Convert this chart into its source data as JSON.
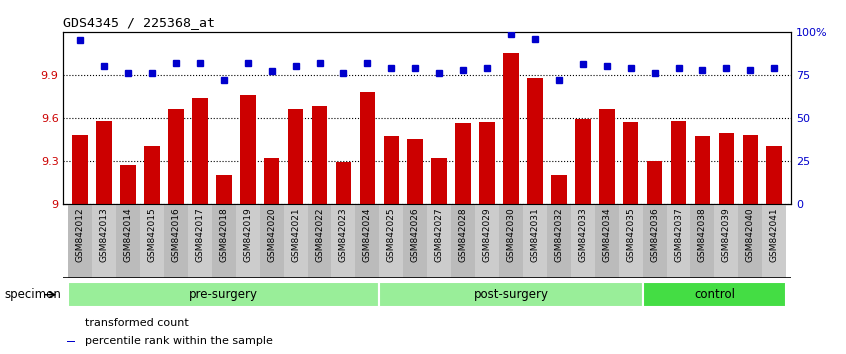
{
  "title": "GDS4345 / 225368_at",
  "samples": [
    "GSM842012",
    "GSM842013",
    "GSM842014",
    "GSM842015",
    "GSM842016",
    "GSM842017",
    "GSM842018",
    "GSM842019",
    "GSM842020",
    "GSM842021",
    "GSM842022",
    "GSM842023",
    "GSM842024",
    "GSM842025",
    "GSM842026",
    "GSM842027",
    "GSM842028",
    "GSM842029",
    "GSM842030",
    "GSM842031",
    "GSM842032",
    "GSM842033",
    "GSM842034",
    "GSM842035",
    "GSM842036",
    "GSM842037",
    "GSM842038",
    "GSM842039",
    "GSM842040",
    "GSM842041"
  ],
  "bar_values": [
    9.48,
    9.58,
    9.27,
    9.4,
    9.66,
    9.74,
    9.2,
    9.76,
    9.32,
    9.66,
    9.68,
    9.29,
    9.78,
    9.47,
    9.45,
    9.32,
    9.56,
    9.57,
    10.05,
    9.88,
    9.2,
    9.59,
    9.66,
    9.57,
    9.3,
    9.58,
    9.47,
    9.49,
    9.48,
    9.4
  ],
  "percentile_values": [
    95,
    80,
    76,
    76,
    82,
    82,
    72,
    82,
    77,
    80,
    82,
    76,
    82,
    79,
    79,
    76,
    78,
    79,
    99,
    96,
    72,
    81,
    80,
    79,
    76,
    79,
    78,
    79,
    78,
    79
  ],
  "ylim_left": [
    9.0,
    10.2
  ],
  "ylim_right": [
    0,
    100
  ],
  "yticks_left": [
    9.0,
    9.3,
    9.6,
    9.9
  ],
  "ytick_labels_left": [
    "9",
    "9.3",
    "9.6",
    "9.9"
  ],
  "yticks_right": [
    0,
    25,
    50,
    75,
    100
  ],
  "ytick_labels_right": [
    "0",
    "25",
    "50",
    "75",
    "100%"
  ],
  "bar_color": "#CC0000",
  "dot_color": "#0000CC",
  "bar_width": 0.65,
  "group_boundaries": [
    {
      "label": "pre-surgery",
      "start": 0,
      "end": 13,
      "color": "#99EE99"
    },
    {
      "label": "post-surgery",
      "start": 13,
      "end": 24,
      "color": "#99EE99"
    },
    {
      "label": "control",
      "start": 24,
      "end": 30,
      "color": "#44DD44"
    }
  ],
  "legend_items": [
    {
      "color": "#CC0000",
      "label": "transformed count"
    },
    {
      "color": "#0000CC",
      "label": "percentile rank within the sample"
    }
  ]
}
